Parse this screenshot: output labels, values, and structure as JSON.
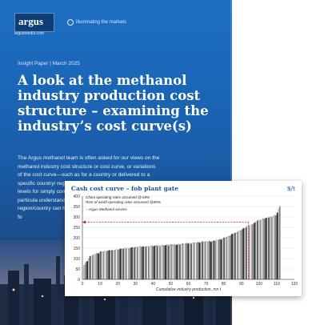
{
  "header": {
    "logo_text": "argus",
    "logo_url": "argusmedia.com",
    "tagline": "illuminating the markets"
  },
  "meta": "Insight Paper | March 2025",
  "title": "A look at the methanol industry production cost structure – examining the industry’s cost curve(s)",
  "body": "The Argus methanol team is often asked for our views on the methanol industry cost structure or cost curve, or variations of the cost curve—such as for a country or delivered to a specific country/ region. These can be informative at high levels for simply comparing various facility cost s structures, particula understand product some cases, looking region/country can h may look like or whe is not sustainable fo",
  "chart_data": {
    "type": "bar",
    "title": "Cash cost curve – fob plant gate",
    "unit": "$/t",
    "xlabel": "Cumulative industry production, mn t",
    "ylabel": "",
    "xlim": [
      0,
      120
    ],
    "ylim": [
      0,
      400
    ],
    "xticks": [
      0,
      10,
      20,
      30,
      40,
      50,
      60,
      70,
      80,
      90,
      100,
      110,
      120
    ],
    "yticks": [
      0,
      50,
      100,
      150,
      200,
      250,
      300,
      350,
      400
    ],
    "annotations": [
      "China operating rates assumed @ 65%",
      "Rest of world operating rates assumed @85%",
      "– Argus Methanol service"
    ],
    "reference_y": 275,
    "reference_x": 94,
    "segments": [
      {
        "x0": 0,
        "x1": 4,
        "y0": 60,
        "y1": 110
      },
      {
        "x0": 4,
        "x1": 10,
        "y0": 110,
        "y1": 132
      },
      {
        "x0": 10,
        "x1": 30,
        "y0": 132,
        "y1": 155
      },
      {
        "x0": 30,
        "x1": 54,
        "y0": 155,
        "y1": 168
      },
      {
        "x0": 54,
        "x1": 75,
        "y0": 168,
        "y1": 185
      },
      {
        "x0": 75,
        "x1": 82,
        "y0": 185,
        "y1": 205
      },
      {
        "x0": 82,
        "x1": 90,
        "y0": 205,
        "y1": 240
      },
      {
        "x0": 90,
        "x1": 98,
        "y0": 240,
        "y1": 275
      },
      {
        "x0": 98,
        "x1": 110,
        "y0": 280,
        "y1": 310
      },
      {
        "x0": 110,
        "x1": 112,
        "y0": 320,
        "y1": 360
      }
    ]
  }
}
